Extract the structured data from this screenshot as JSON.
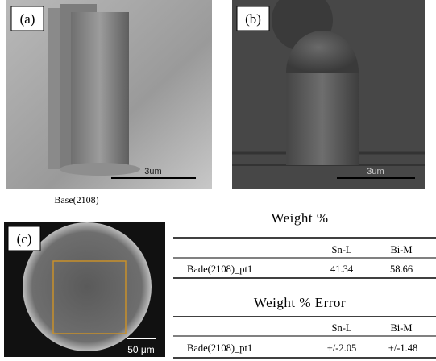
{
  "panels": {
    "a": {
      "label": "(a)",
      "scale_bar": "3um",
      "caption": "Base(2108)"
    },
    "b": {
      "label": "(b)",
      "scale_bar": "3um"
    },
    "c": {
      "label": "(c)",
      "scale_bar": "50 μm"
    }
  },
  "tables": [
    {
      "title": "Weight %",
      "columns": [
        "Sn-L",
        "Bi-M"
      ],
      "rows": [
        {
          "label": "Bade(2108)_pt1",
          "values": [
            "41.34",
            "58.66"
          ]
        }
      ]
    },
    {
      "title": "Weight % Error",
      "columns": [
        "Sn-L",
        "Bi-M"
      ],
      "rows": [
        {
          "label": "Bade(2108)_pt1",
          "values": [
            "+/-2.05",
            "+/-1.48"
          ]
        }
      ]
    }
  ]
}
